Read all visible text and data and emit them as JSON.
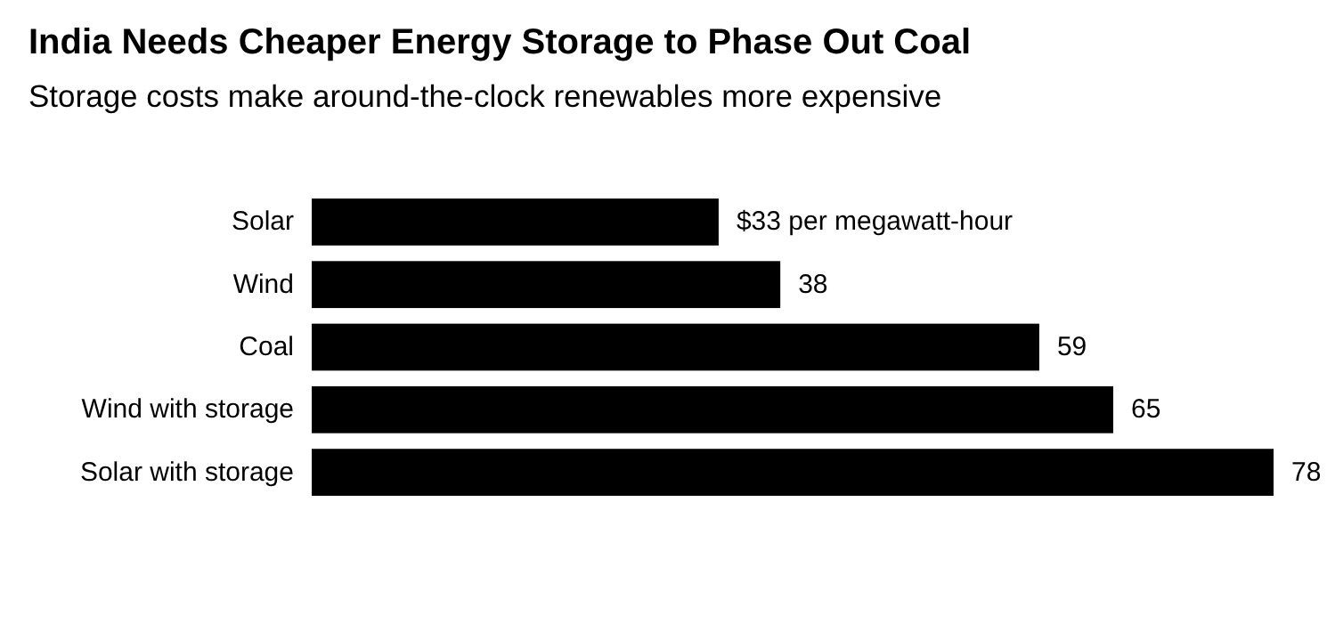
{
  "chart_data": {
    "type": "bar",
    "orientation": "horizontal",
    "title": "India Needs Cheaper Energy Storage to Phase Out Coal",
    "subtitle": "Storage costs make around-the-clock renewables more expensive",
    "categories": [
      "Solar",
      "Wind",
      "Coal",
      "Wind with storage",
      "Solar with storage"
    ],
    "values": [
      33,
      38,
      59,
      65,
      78
    ],
    "value_labels": [
      "$33 per megawatt-hour",
      "38",
      "59",
      "65",
      "78"
    ],
    "color": "#000000"
  }
}
